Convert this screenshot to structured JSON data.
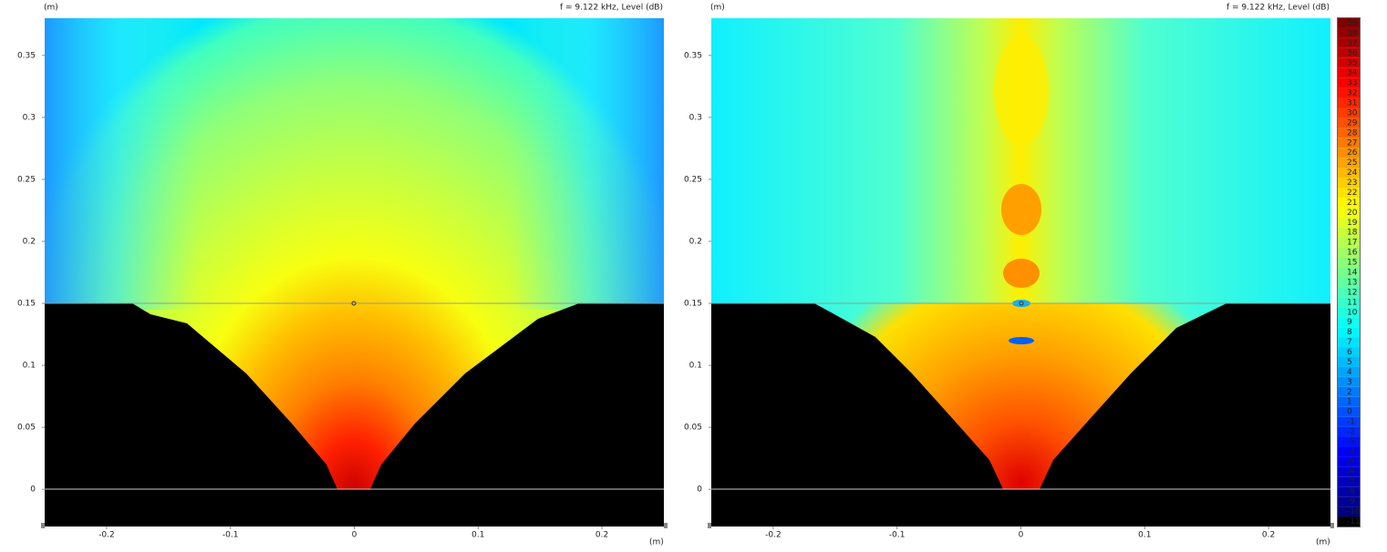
{
  "chart_data": [
    {
      "type": "field",
      "title": "f = 9.122 kHz, Level  (dB)",
      "x_label": "(m)",
      "y_label": "(m)",
      "xlim": [
        -0.25,
        0.25
      ],
      "xticks": [
        -0.2,
        -0.1,
        0,
        0.1,
        0.2
      ],
      "ylim": [
        -0.03,
        0.38
      ],
      "yticks": [
        0,
        0.05,
        0.1,
        0.15,
        0.2,
        0.25,
        0.3,
        0.35
      ]
    },
    {
      "type": "field",
      "title": "f = 9.122 kHz, Level  (dB)",
      "x_label": "(m)",
      "y_label": "(m)",
      "xlim": [
        -0.25,
        0.25
      ],
      "xticks": [
        -0.2,
        -0.1,
        0,
        0.1,
        0.2
      ],
      "ylim": [
        -0.03,
        0.38
      ],
      "yticks": [
        0,
        0.05,
        0.1,
        0.15,
        0.2,
        0.25,
        0.3,
        0.35
      ],
      "colorbar": {
        "levels": [
          39,
          38,
          37,
          36,
          35,
          34,
          33,
          32,
          31,
          30,
          29,
          28,
          27,
          26,
          25,
          24,
          23,
          22,
          21,
          20,
          19,
          18,
          17,
          16,
          15,
          14,
          13,
          12,
          11,
          10,
          9,
          8,
          7,
          6,
          5,
          4,
          3,
          2,
          1,
          0,
          -1,
          -2,
          -3,
          -4,
          -5,
          -6,
          -7,
          -8,
          -9,
          -10,
          -11
        ],
        "colormap": "jet",
        "under_color": "#000000"
      }
    }
  ]
}
